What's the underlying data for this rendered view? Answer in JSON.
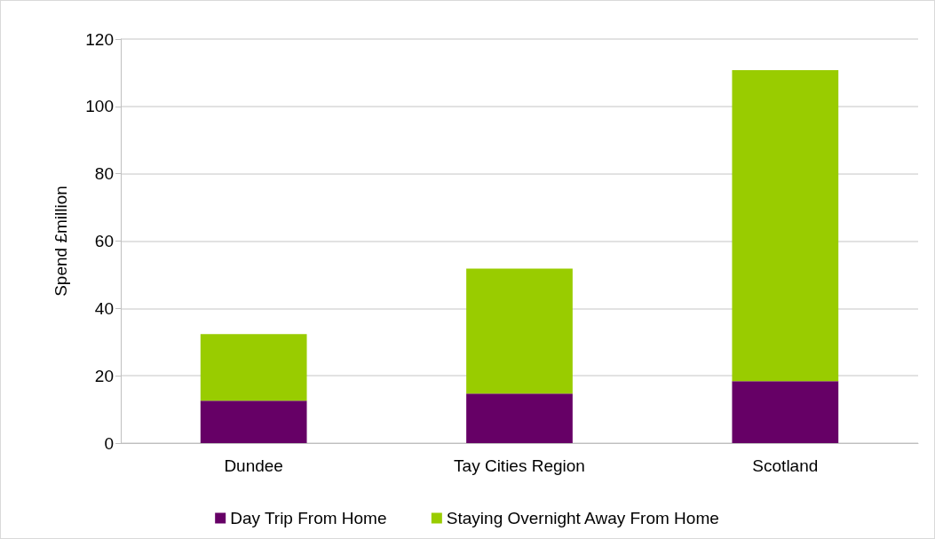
{
  "chart_data": {
    "type": "bar",
    "stacked": true,
    "ylabel": "Spend £million",
    "categories": [
      "Dundee",
      "Tay Cities Region",
      "Scotland"
    ],
    "series": [
      {
        "name": "Day Trip From Home",
        "color": "#660066",
        "values": [
          12.6,
          14.7,
          18.4
        ]
      },
      {
        "name": "Staying Overnight Away From Home",
        "color": "#99cc00",
        "values": [
          19.8,
          37.1,
          92.4
        ]
      }
    ],
    "ylim": [
      0,
      120
    ],
    "yticks": [
      0,
      20,
      40,
      60,
      80,
      100,
      120
    ],
    "grid": "y",
    "legend": "bottom"
  }
}
